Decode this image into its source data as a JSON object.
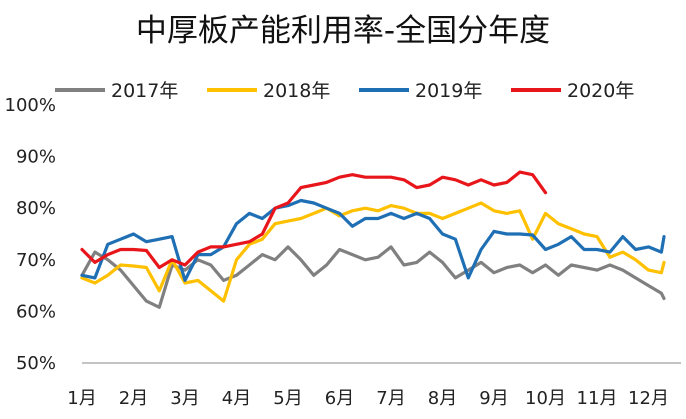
{
  "chart_data": {
    "type": "line",
    "title": "中厚板产能利用率-全国分年度",
    "xlabel": "",
    "ylabel": "",
    "x_tick_labels": [
      "1月",
      "2月",
      "3月",
      "4月",
      "5月",
      "6月",
      "7月",
      "8月",
      "9月",
      "10月",
      "11月",
      "12月"
    ],
    "y_tick_labels": [
      "50%",
      "60%",
      "70%",
      "80%",
      "90%",
      "100%"
    ],
    "ylim": [
      50,
      100
    ],
    "y_ticks": [
      50,
      60,
      70,
      80,
      90,
      100
    ],
    "xlim": [
      0,
      11.3
    ],
    "grid": false,
    "legend_position": "top",
    "series": [
      {
        "name": "2017年",
        "color": "#808080",
        "x": [
          0,
          0.25,
          0.5,
          0.75,
          1,
          1.25,
          1.5,
          1.75,
          2,
          2.25,
          2.5,
          2.75,
          3,
          3.25,
          3.5,
          3.75,
          4,
          4.25,
          4.5,
          4.75,
          5,
          5.25,
          5.5,
          5.75,
          6,
          6.25,
          6.5,
          6.75,
          7,
          7.25,
          7.5,
          7.75,
          8,
          8.25,
          8.5,
          8.75,
          9,
          9.25,
          9.5,
          9.75,
          10,
          10.25,
          10.5,
          10.75,
          11,
          11.25,
          11.3
        ],
        "values": [
          67,
          71.5,
          70,
          68,
          65,
          62,
          60.8,
          69,
          68,
          70,
          69,
          66,
          67,
          69,
          71,
          70,
          72.5,
          70,
          67,
          69,
          72,
          71,
          70,
          70.5,
          72.5,
          69,
          69.5,
          71.5,
          69.5,
          66.5,
          68,
          69.5,
          67.5,
          68.5,
          69,
          67.5,
          69,
          67,
          69,
          68.5,
          68,
          69,
          68,
          66.5,
          65,
          63.5,
          62.5
        ]
      },
      {
        "name": "2018年",
        "color": "#FFC000",
        "x": [
          0,
          0.25,
          0.5,
          0.75,
          1,
          1.25,
          1.5,
          1.75,
          2,
          2.25,
          2.5,
          2.75,
          3,
          3.25,
          3.5,
          3.75,
          4,
          4.25,
          4.5,
          4.75,
          5,
          5.25,
          5.5,
          5.75,
          6,
          6.25,
          6.5,
          6.75,
          7,
          7.25,
          7.5,
          7.75,
          8,
          8.25,
          8.5,
          8.75,
          9,
          9.25,
          9.5,
          9.75,
          10,
          10.25,
          10.5,
          10.75,
          11,
          11.25,
          11.3
        ],
        "values": [
          66.5,
          65.5,
          67,
          69,
          68.8,
          68.5,
          64,
          70,
          65.5,
          66,
          64,
          62,
          70,
          73,
          74,
          77,
          77.5,
          78,
          79,
          80,
          78.5,
          79.5,
          80,
          79.5,
          80.5,
          80,
          79,
          79,
          78,
          79,
          80,
          81,
          79.5,
          79,
          79.5,
          74,
          79,
          77,
          76,
          75,
          74.5,
          70.5,
          71.5,
          70,
          68,
          67.5,
          69.5
        ]
      },
      {
        "name": "2019年",
        "color": "#1F6FB5",
        "x": [
          0,
          0.25,
          0.5,
          0.75,
          1,
          1.25,
          1.5,
          1.75,
          2,
          2.25,
          2.5,
          2.75,
          3,
          3.25,
          3.5,
          3.75,
          4,
          4.25,
          4.5,
          4.75,
          5,
          5.25,
          5.5,
          5.75,
          6,
          6.25,
          6.5,
          6.75,
          7,
          7.25,
          7.5,
          7.75,
          8,
          8.25,
          8.5,
          8.75,
          9,
          9.25,
          9.5,
          9.75,
          10,
          10.25,
          10.5,
          10.75,
          11,
          11.25,
          11.3
        ],
        "values": [
          67,
          66.5,
          73,
          74,
          75,
          73.5,
          74,
          74.5,
          66,
          71,
          71,
          72.5,
          77,
          79,
          78,
          80,
          80.5,
          81.5,
          81,
          80,
          79,
          76.5,
          78,
          78,
          79,
          78,
          79,
          78,
          75,
          74,
          66.5,
          72,
          75.5,
          75,
          75,
          74.8,
          72,
          73,
          74.5,
          72,
          72,
          71.5,
          74.5,
          72,
          72.5,
          71.5,
          74.5
        ]
      },
      {
        "name": "2020年",
        "color": "#E8161B",
        "x": [
          0,
          0.25,
          0.5,
          0.75,
          1,
          1.25,
          1.5,
          1.75,
          2,
          2.25,
          2.5,
          2.75,
          3,
          3.25,
          3.5,
          3.75,
          4,
          4.25,
          4.5,
          4.75,
          5,
          5.25,
          5.5,
          5.75,
          6,
          6.25,
          6.5,
          6.75,
          7,
          7.25,
          7.5,
          7.75,
          8,
          8.25,
          8.5,
          8.75,
          9,
          9.25,
          9.5,
          9.75,
          10,
          10.25,
          10.5,
          10.75,
          11,
          11.25,
          11.3
        ],
        "values": [
          72,
          69.5,
          71,
          72,
          72,
          71.8,
          68.5,
          70,
          69,
          71.5,
          72.5,
          72.5,
          73,
          73.5,
          75,
          80,
          81,
          84,
          84.5,
          85,
          86,
          86.5,
          86,
          86,
          86,
          85.5,
          84,
          84.5,
          86,
          85.5,
          84.5,
          85.5,
          84.5,
          85,
          87,
          86.5,
          83,
          null,
          null,
          null,
          null,
          null,
          null,
          null,
          null,
          null,
          null
        ]
      }
    ]
  }
}
